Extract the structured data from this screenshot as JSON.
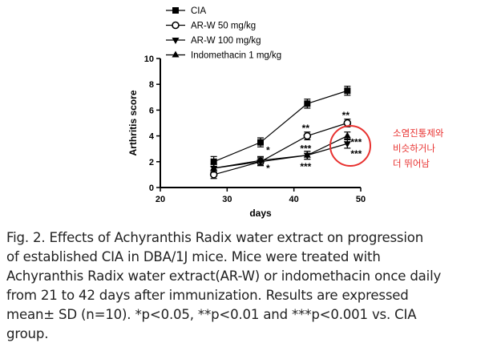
{
  "chart_data": {
    "type": "line",
    "xlabel": "days",
    "ylabel": "Arthritis score",
    "xlim": [
      20,
      50
    ],
    "ylim": [
      0,
      10
    ],
    "xticks": [
      20,
      30,
      40,
      50
    ],
    "yticks": [
      0,
      2,
      4,
      6,
      8,
      10
    ],
    "x": [
      28,
      35,
      42,
      48
    ],
    "series": [
      {
        "name": "CIA",
        "marker": "filled-square",
        "values": [
          2.0,
          3.5,
          6.5,
          7.5
        ],
        "errors": [
          0.4,
          0.35,
          0.35,
          0.35
        ]
      },
      {
        "name": "AR-W 50 mg/kg",
        "marker": "open-circle",
        "values": [
          1.0,
          2.0,
          4.0,
          5.0
        ],
        "errors": [
          0.3,
          0.3,
          0.3,
          0.3
        ]
      },
      {
        "name": "AR-W 100 mg/kg",
        "marker": "filled-triangle-down",
        "values": [
          1.5,
          2.0,
          2.5,
          3.4
        ],
        "errors": [
          0.3,
          0.3,
          0.3,
          0.35
        ]
      },
      {
        "name": "Indomethacin 1 mg/kg",
        "marker": "filled-triangle-up",
        "values": [
          1.5,
          2.1,
          2.5,
          4.0
        ],
        "errors": [
          0.3,
          0.3,
          0.3,
          0.3
        ]
      }
    ],
    "significance_labels": [
      {
        "text": "*",
        "x": 35,
        "y": 2.9
      },
      {
        "text": "*",
        "x": 35,
        "y": 1.5
      },
      {
        "text": "**",
        "x": 42,
        "y": 4.6
      },
      {
        "text": "***",
        "x": 42,
        "y": 3.0
      },
      {
        "text": "***",
        "x": 42,
        "y": 1.6
      },
      {
        "text": "**",
        "x": 48,
        "y": 5.6
      },
      {
        "text": "***",
        "x": 48,
        "y": 3.5
      },
      {
        "text": "***",
        "x": 48,
        "y": 2.6
      }
    ],
    "legend_position": "top-left"
  },
  "annotation": {
    "lines": [
      "소염진통제와",
      "비슷하거나",
      "더 뛰어남"
    ],
    "color": "#e8312f"
  },
  "caption": {
    "lines": [
      "Fig. 2. Effects of Achyranthis Radix water extract on progression",
      "of established CIA in DBA/1J mice. Mice were treated with",
      "Achyranthis Radix water extract(AR-W) or indomethacin once daily",
      "from 21 to 42 days after immunization. Results are expressed",
      "mean± SD (n=10). *p<0.05, **p<0.01 and ***p<0.001 vs. CIA",
      "group."
    ]
  }
}
